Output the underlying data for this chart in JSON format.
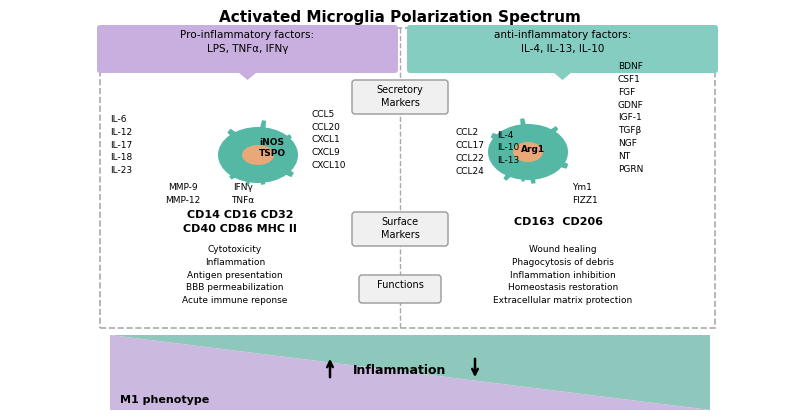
{
  "title": "Activated Microglia Polarization Spectrum",
  "title_fontsize": 11,
  "bg_color": "#ffffff",
  "left_header_color": "#c9aee0",
  "right_header_color": "#85cdc0",
  "left_header_text": "Pro-inflammatory factors:\nLPS, TNFα, IFNγ",
  "right_header_text": "anti-inflammatory factors:\nIL-4, IL-13, IL-10",
  "microglia_body_color": "#55b8a5",
  "microglia_nucleus_color": "#e8a878",
  "m1_label": "iNOS\nTSPO",
  "m2_label": "Arg1",
  "secretory_box_text": "Secretory\nMarkers",
  "surface_box_text": "Surface\nMarkers",
  "functions_box_text": "Functions",
  "m1_left_labels": "IL-6\nIL-12\nIL-17\nIL-18\nIL-23",
  "m1_bottom_left_labels": "MMP-9\nMMP-12",
  "m1_bottom_right_labels": "IFNγ\nTNFα",
  "m1_right_labels": "CCL5\nCCL20\nCXCL1\nCXCL9\nCXCL10",
  "m2_left_labels": "CCL2\nCCL17\nCCL22\nCCL24",
  "m2_mid_labels": "IL-4\nIL-10\nIL-13",
  "m2_bottom_right_labels": "Ym1\nFIZZ1",
  "m2_right_labels": "BDNF\nCSF1\nFGF\nGDNF\nIGF-1\nTGFβ\nNGF\nNT\nPGRN",
  "m1_surface_markers": "CD14 CD16 CD32\nCD40 CD86 MHC II",
  "m2_surface_markers": "CD163  CD206",
  "m1_functions": "Cytotoxicity\nInflammation\nAntigen presentation\nBBB permeabilization\nAcute immune reponse",
  "m2_functions": "Wound healing\nPhagocytosis of debris\nInflammation inhibition\nHomeostasis restoration\nExtracellular matrix protection",
  "inflammation_label": "Inflammation",
  "m1_phenotype_label": "M1 phenotype",
  "triangle_m1_color": "#c0a8d8",
  "triangle_m2_color": "#7abfb2",
  "box_border_color": "#999999",
  "dashed_border_color": "#aaaaaa"
}
